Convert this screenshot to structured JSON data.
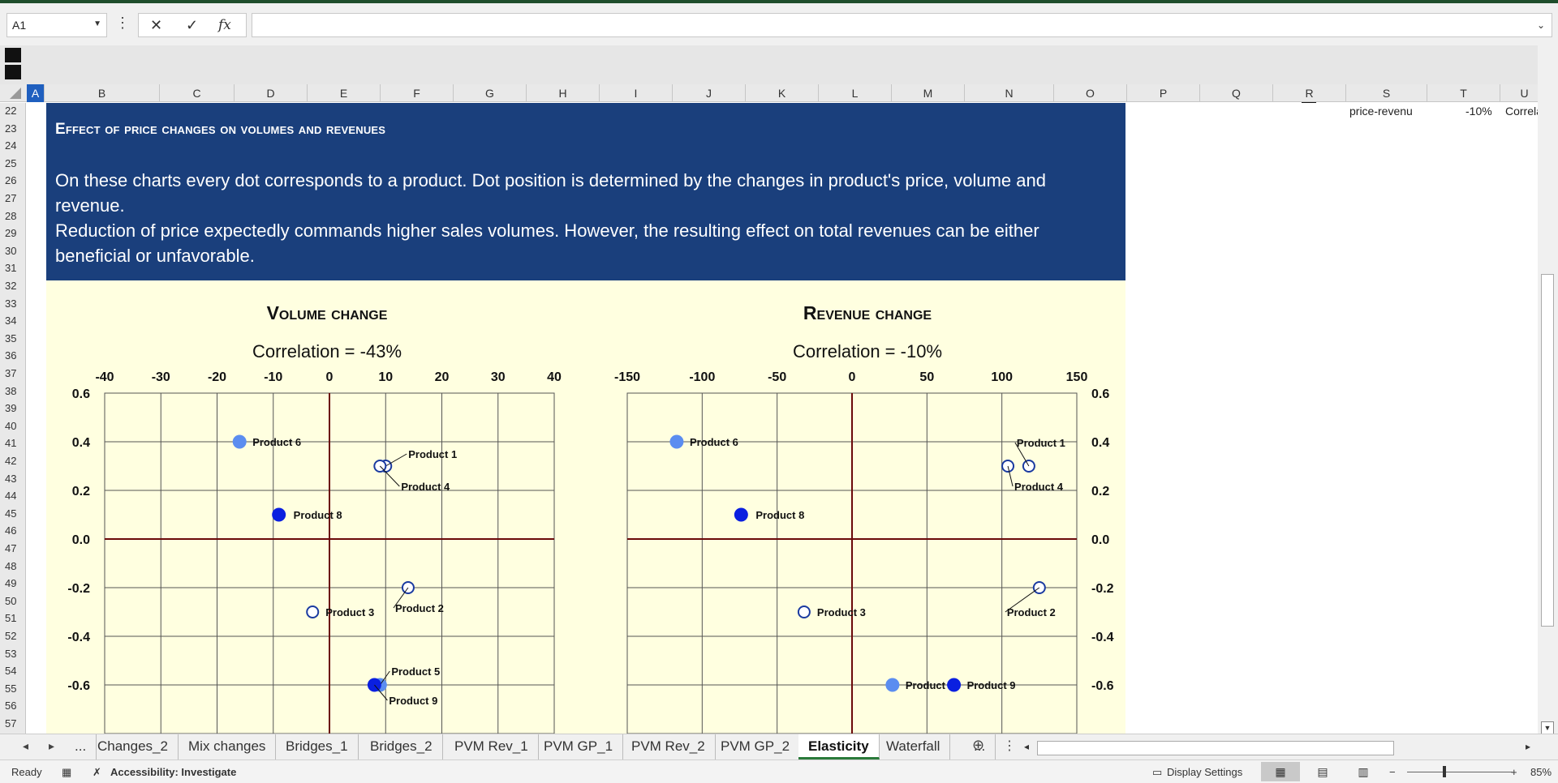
{
  "formula_bar": {
    "name_box": "A1",
    "formula": "",
    "cancel_icon": "✕",
    "enter_icon": "✓",
    "fx_icon": "fx"
  },
  "columns": [
    {
      "label": "A",
      "w": 22,
      "sel": true
    },
    {
      "label": "B",
      "w": 142
    },
    {
      "label": "C",
      "w": 92
    },
    {
      "label": "D",
      "w": 90
    },
    {
      "label": "E",
      "w": 90
    },
    {
      "label": "F",
      "w": 90
    },
    {
      "label": "G",
      "w": 90
    },
    {
      "label": "H",
      "w": 90
    },
    {
      "label": "I",
      "w": 90
    },
    {
      "label": "J",
      "w": 90
    },
    {
      "label": "K",
      "w": 90
    },
    {
      "label": "L",
      "w": 90
    },
    {
      "label": "M",
      "w": 90
    },
    {
      "label": "N",
      "w": 110
    },
    {
      "label": "O",
      "w": 90
    },
    {
      "label": "P",
      "w": 90
    },
    {
      "label": "Q",
      "w": 90
    },
    {
      "label": "R",
      "w": 90
    },
    {
      "label": "S",
      "w": 100
    },
    {
      "label": "T",
      "w": 90
    },
    {
      "label": "U",
      "w": 60
    }
  ],
  "rows": [
    "22",
    "23",
    "24",
    "25",
    "26",
    "27",
    "28",
    "29",
    "30",
    "31",
    "32",
    "33",
    "34",
    "35",
    "36",
    "37",
    "38",
    "39",
    "40",
    "41",
    "42",
    "43",
    "44",
    "45",
    "46",
    "47",
    "48",
    "49",
    "50",
    "51",
    "52",
    "53",
    "54",
    "55",
    "56",
    "57"
  ],
  "banner": {
    "title": "Effect of price changes on volumes and revenues",
    "para1": "On these charts every dot corresponds to a product. Dot position is determined by the changes in product's price, volume and revenue.",
    "para2": "Reduction of price expectedly commands higher sales volumes. However, the resulting effect on total revenues  can be either beneficial or unfavorable."
  },
  "side_cells": {
    "s22": "price-revenu",
    "t22": "-10%",
    "u22": "Correla"
  },
  "chart_data": [
    {
      "type": "scatter",
      "title": "Volume change",
      "subtitle": "Correlation = -43%",
      "xlim": [
        -40,
        40
      ],
      "ylim": [
        -0.8,
        0.6
      ],
      "x_ticks": [
        "-40",
        "-30",
        "-20",
        "-10",
        "0",
        "10",
        "20",
        "30",
        "40"
      ],
      "y_ticks": [
        "0.6",
        "0.4",
        "0.2",
        "0.0",
        "-0.2",
        "-0.4",
        "-0.6"
      ],
      "colors": {
        "filled_light": "#5b8df0",
        "filled_dark": "#0a1fe0",
        "hollow": "#1a3aa0",
        "axis": "#6b0a0a"
      },
      "points": [
        {
          "label": "Product 6",
          "x": -16,
          "y": 0.4,
          "style": "filled_light"
        },
        {
          "label": "Product 1",
          "x": 10,
          "y": 0.3,
          "style": "hollow"
        },
        {
          "label": "Product 4",
          "x": 9,
          "y": 0.3,
          "style": "hollow"
        },
        {
          "label": "Product 8",
          "x": -9,
          "y": 0.1,
          "style": "filled_dark"
        },
        {
          "label": "Product 2",
          "x": 14,
          "y": -0.2,
          "style": "hollow"
        },
        {
          "label": "Product 3",
          "x": -3,
          "y": -0.3,
          "style": "hollow"
        },
        {
          "label": "Product 5",
          "x": 9,
          "y": -0.6,
          "style": "filled_light"
        },
        {
          "label": "Product 9",
          "x": 8,
          "y": -0.6,
          "style": "filled_dark"
        }
      ]
    },
    {
      "type": "scatter",
      "title": "Revenue change",
      "subtitle": "Correlation = -10%",
      "xlim": [
        -150,
        150
      ],
      "ylim": [
        -0.8,
        0.6
      ],
      "x_ticks": [
        "-150",
        "-100",
        "-50",
        "0",
        "50",
        "100",
        "150"
      ],
      "y_ticks": [
        "0.6",
        "0.4",
        "0.2",
        "0.0",
        "-0.2",
        "-0.4",
        "-0.6"
      ],
      "colors": {
        "filled_light": "#5b8df0",
        "filled_dark": "#0a1fe0",
        "hollow": "#1a3aa0",
        "axis": "#6b0a0a"
      },
      "points": [
        {
          "label": "Product 6",
          "x": -117,
          "y": 0.4,
          "style": "filled_light"
        },
        {
          "label": "Product 1",
          "x": 118,
          "y": 0.3,
          "style": "hollow"
        },
        {
          "label": "Product 4",
          "x": 104,
          "y": 0.3,
          "style": "hollow"
        },
        {
          "label": "Product 8",
          "x": -74,
          "y": 0.1,
          "style": "filled_dark"
        },
        {
          "label": "Product 2",
          "x": 125,
          "y": -0.2,
          "style": "hollow"
        },
        {
          "label": "Product 3",
          "x": -32,
          "y": -0.3,
          "style": "hollow"
        },
        {
          "label": "Product 5",
          "x": 27,
          "y": -0.6,
          "style": "filled_light"
        },
        {
          "label": "Product 9",
          "x": 68,
          "y": -0.6,
          "style": "filled_dark"
        }
      ]
    }
  ],
  "sheet_tabs": [
    {
      "label": "...",
      "active": false
    },
    {
      "label": "Changes_2",
      "active": false
    },
    {
      "label": "Mix changes",
      "active": false
    },
    {
      "label": "Bridges_1",
      "active": false
    },
    {
      "label": "Bridges_2",
      "active": false
    },
    {
      "label": "PVM Rev_1",
      "active": false
    },
    {
      "label": "PVM GP_1",
      "active": false
    },
    {
      "label": "PVM Rev_2",
      "active": false
    },
    {
      "label": "PVM GP_2",
      "active": false
    },
    {
      "label": "Elasticity",
      "active": true
    },
    {
      "label": "Waterfall",
      "active": false
    },
    {
      "label": "...",
      "active": false
    }
  ],
  "status_bar": {
    "ready": "Ready",
    "accessibility": "Accessibility: Investigate",
    "display_settings": "Display Settings",
    "zoom": "85%"
  }
}
